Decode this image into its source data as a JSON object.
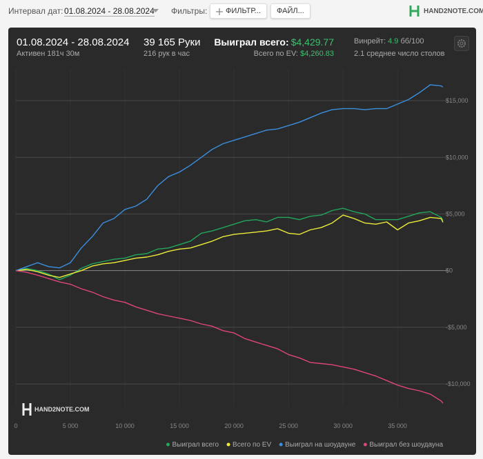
{
  "toolbar": {
    "date_label": "Интервал дат:",
    "date_value": "01.08.2024 - 28.08.2024",
    "filters_label": "Фильтры:",
    "filter_button": "ФИЛЬТР...",
    "file_button": "ФАЙЛ...",
    "logo": "HAND2NOTE.COM"
  },
  "stats": {
    "period": "01.08.2024 - 28.08.2024",
    "active": "Активен 181ч 30м",
    "hands": "39 165 Руки",
    "hands_per_hour": "216 рук в час",
    "won_label": "Выиграл всего:",
    "won_value": "$4,429.77",
    "ev_label": "Всего по EV:",
    "ev_value": "$4,260.83",
    "winrate_label": "Винрейт:",
    "winrate_value": "4.9",
    "winrate_unit": "бб/100",
    "tables": "2.1 среднее число столов"
  },
  "watermark": "HAND2NOTE.COM",
  "chart_data": {
    "type": "line",
    "x": [
      0,
      1000,
      2000,
      3000,
      4000,
      5000,
      6000,
      7000,
      8000,
      9000,
      10000,
      11000,
      12000,
      13000,
      14000,
      15000,
      16000,
      17000,
      18000,
      19000,
      20000,
      21000,
      22000,
      23000,
      24000,
      25000,
      26000,
      27000,
      28000,
      29000,
      30000,
      31000,
      32000,
      33000,
      34000,
      35000,
      36000,
      37000,
      38000,
      39000,
      39165
    ],
    "series": [
      {
        "name": "Выиграл всего",
        "color": "#22a85c",
        "values": [
          0,
          200,
          0,
          -300,
          -800,
          -400,
          200,
          600,
          800,
          1000,
          1100,
          1400,
          1500,
          1900,
          2000,
          2300,
          2600,
          3300,
          3500,
          3800,
          4100,
          4400,
          4500,
          4300,
          4700,
          4700,
          4500,
          4800,
          4900,
          5300,
          5500,
          5200,
          5000,
          4500,
          4500,
          4500,
          4800,
          5100,
          5200,
          4700,
          4430
        ]
      },
      {
        "name": "Всего по EV",
        "color": "#eded3a",
        "values": [
          0,
          100,
          -100,
          -400,
          -600,
          -300,
          0,
          400,
          600,
          700,
          900,
          1100,
          1200,
          1400,
          1700,
          1900,
          2000,
          2300,
          2600,
          3000,
          3200,
          3300,
          3400,
          3500,
          3700,
          3300,
          3200,
          3600,
          3800,
          4200,
          4900,
          4600,
          4200,
          4100,
          4300,
          3600,
          4200,
          4400,
          4700,
          4600,
          4261
        ]
      },
      {
        "name": "Выиграл на шоудауне",
        "color": "#3b8fe0",
        "values": [
          0,
          360,
          700,
          360,
          240,
          700,
          2000,
          3000,
          4200,
          4600,
          5400,
          5700,
          6300,
          7500,
          8300,
          8700,
          9300,
          10000,
          10700,
          11200,
          11500,
          11800,
          12100,
          12400,
          12500,
          12800,
          13100,
          13500,
          13900,
          14200,
          14300,
          14300,
          14200,
          14300,
          14300,
          14700,
          15100,
          15700,
          16400,
          16300,
          16200
        ]
      },
      {
        "name": "Выиграл без шоудауна",
        "color": "#e0457a",
        "values": [
          0,
          -150,
          -400,
          -700,
          -1000,
          -1200,
          -1600,
          -1900,
          -2300,
          -2600,
          -2800,
          -3200,
          -3500,
          -3800,
          -4000,
          -4200,
          -4400,
          -4700,
          -4900,
          -5300,
          -5500,
          -6000,
          -6300,
          -6600,
          -6900,
          -7400,
          -7700,
          -8100,
          -8200,
          -8300,
          -8500,
          -8700,
          -9000,
          -9300,
          -9700,
          -10100,
          -10400,
          -10600,
          -10900,
          -11500,
          -11700
        ]
      }
    ],
    "xlim": [
      0,
      39165
    ],
    "xticks": [
      0,
      {
        "value": 5000,
        "label": "5 000"
      },
      {
        "value": 10000,
        "label": "10 000"
      },
      {
        "value": 15000,
        "label": "15 000"
      },
      {
        "value": 20000,
        "label": "20 000"
      },
      {
        "value": 25000,
        "label": "25 000"
      },
      {
        "value": 30000,
        "label": "30 000"
      },
      {
        "value": 35000,
        "label": "35 000"
      }
    ],
    "ylim": [
      -12000,
      17800
    ],
    "yticks": [
      {
        "value": -10000,
        "label": "-$10,000"
      },
      {
        "value": -5000,
        "label": "-$5,000"
      },
      {
        "value": 0,
        "label": "$0"
      },
      {
        "value": 5000,
        "label": "$5,000"
      },
      {
        "value": 10000,
        "label": "$10,000"
      },
      {
        "value": 15000,
        "label": "$15,000"
      }
    ],
    "grid": true
  }
}
